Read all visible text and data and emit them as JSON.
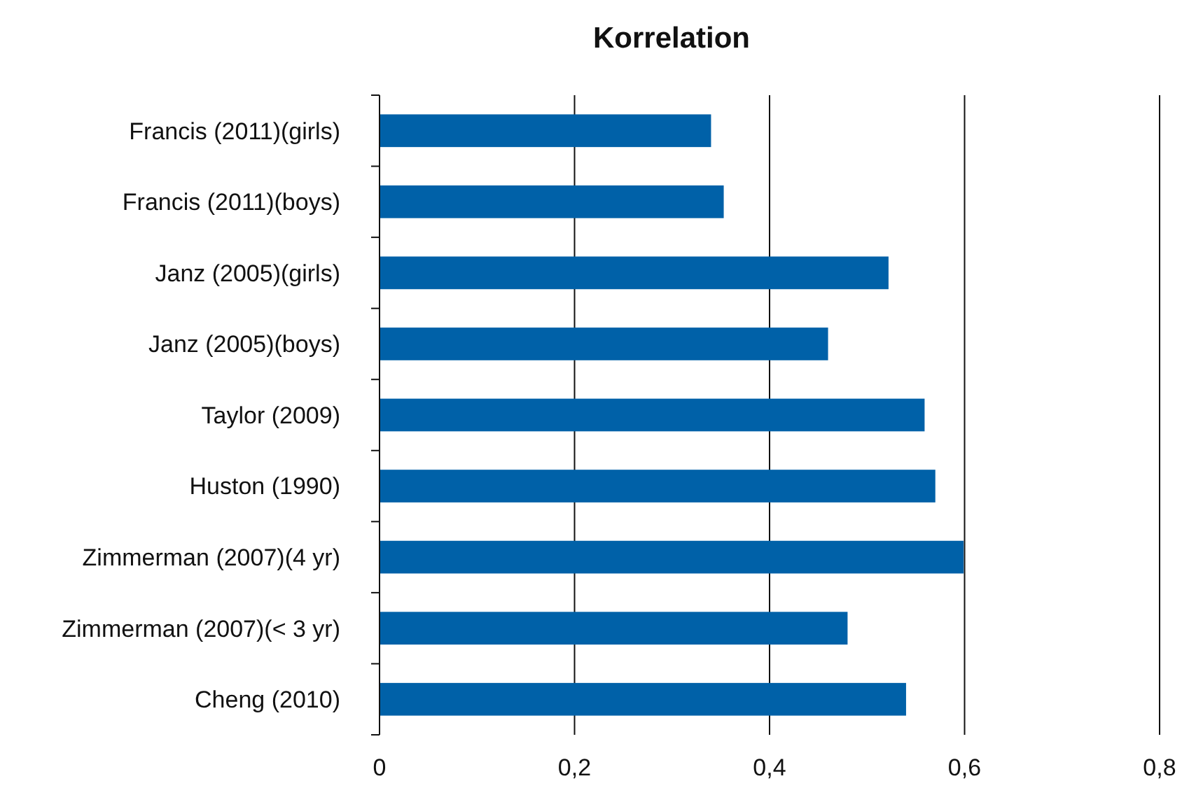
{
  "chart_data": {
    "type": "bar",
    "orientation": "horizontal",
    "title": "Korrelation",
    "categories": [
      "Francis (2011)(girls)",
      "Francis (2011)(boys)",
      "Janz (2005)(girls)",
      "Janz (2005)(boys)",
      "Taylor (2009)",
      "Huston (1990)",
      "Zimmerman (2007)(4 yr)",
      "Zimmerman (2007)(< 3 yr)",
      "Cheng (2010)"
    ],
    "values": [
      0.34,
      0.353,
      0.522,
      0.46,
      0.559,
      0.57,
      0.599,
      0.48,
      0.54
    ],
    "color": "#0061a8",
    "xlim": [
      0,
      0.8
    ],
    "xticks": [
      {
        "value": 0,
        "label": "0"
      },
      {
        "value": 0.2,
        "label": "0,2"
      },
      {
        "value": 0.4,
        "label": "0,4"
      },
      {
        "value": 0.6,
        "label": "0,6"
      },
      {
        "value": 0.8,
        "label": "0,8"
      }
    ],
    "grid": "x"
  }
}
